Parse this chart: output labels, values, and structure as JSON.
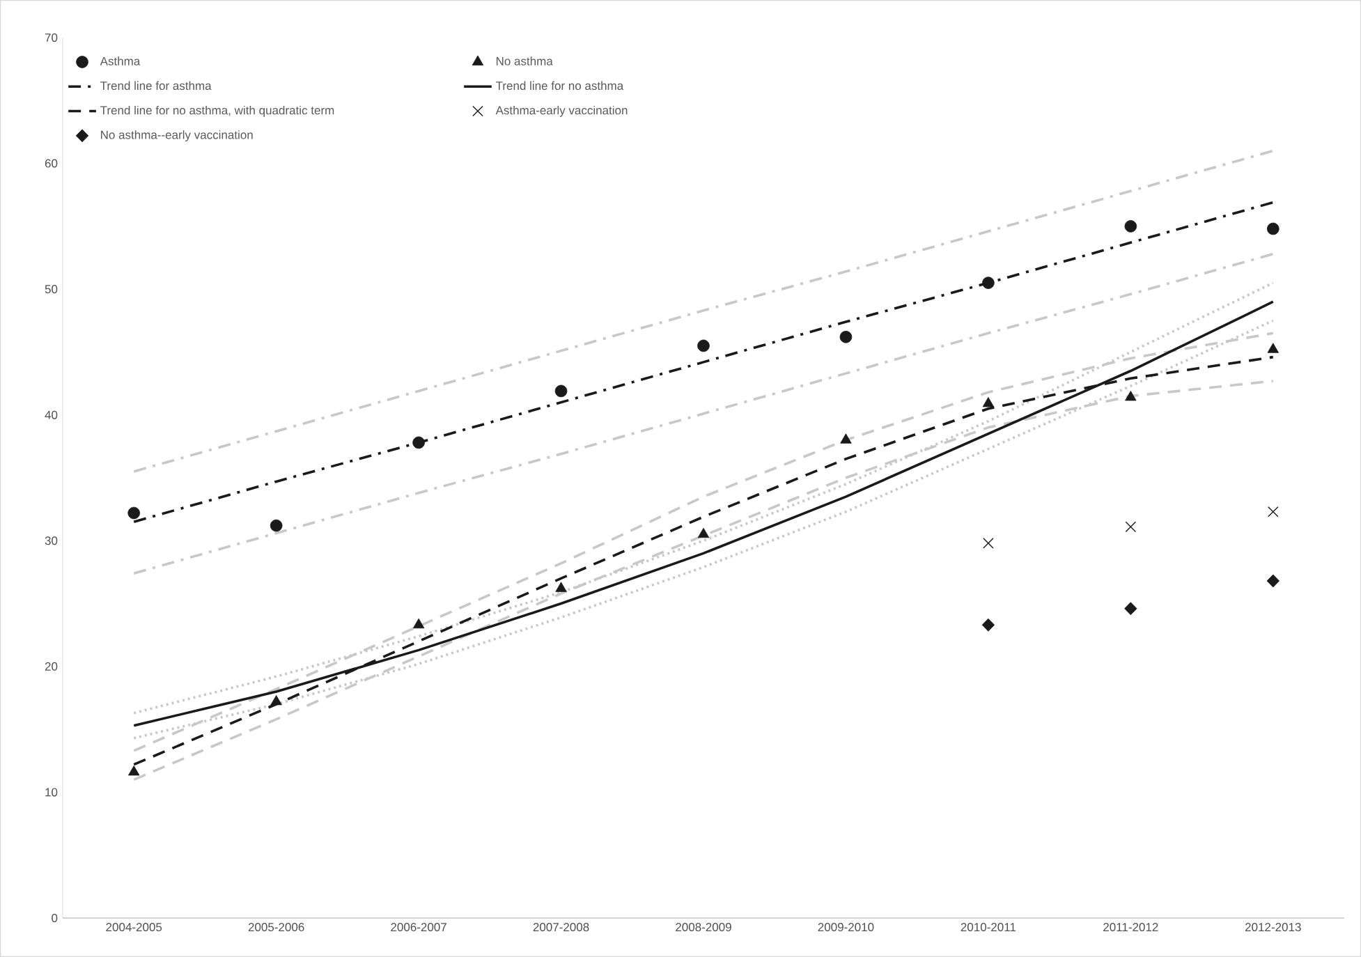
{
  "chart_data": {
    "type": "scatter",
    "categories": [
      "2004-2005",
      "2005-2006",
      "2006-2007",
      "2007-2008",
      "2008-2009",
      "2009-2010",
      "2010-2011",
      "2011-2012",
      "2012-2013"
    ],
    "ylim": [
      0,
      70
    ],
    "yticks": [
      0,
      10,
      20,
      30,
      40,
      50,
      60,
      70
    ],
    "grid": false,
    "legend": "top",
    "series": [
      {
        "name": "Asthma",
        "marker": "circle",
        "color": "#1a1a1a",
        "values": [
          32.2,
          31.2,
          37.8,
          41.9,
          45.5,
          46.2,
          50.5,
          55.0,
          54.8
        ]
      },
      {
        "name": "No asthma",
        "marker": "triangle",
        "color": "#1a1a1a",
        "values": [
          11.6,
          17.2,
          23.3,
          26.2,
          30.5,
          38.0,
          40.9,
          41.4,
          45.2
        ]
      },
      {
        "name": "Trend line for asthma",
        "type": "line",
        "line_style": "dashdot",
        "color": "#1a1a1a",
        "values": [
          31.5,
          34.7,
          37.8,
          41.0,
          44.2,
          47.4,
          50.5,
          53.7,
          56.9
        ]
      },
      {
        "name": "Trend line for no asthma",
        "type": "line",
        "line_style": "solid",
        "color": "#1a1a1a",
        "values": [
          15.3,
          18.0,
          21.3,
          25.0,
          29.0,
          33.5,
          38.5,
          43.5,
          49.0
        ]
      },
      {
        "name": "Trend line for no asthma, with quadratic term",
        "type": "line",
        "line_style": "dashed",
        "color": "#1a1a1a",
        "values": [
          12.2,
          17.0,
          22.0,
          27.0,
          31.9,
          36.5,
          40.5,
          42.9,
          44.6
        ]
      },
      {
        "name": "Asthma-early vaccination",
        "marker": "cross",
        "color": "#1a1a1a",
        "values": [
          null,
          null,
          null,
          null,
          null,
          null,
          29.8,
          31.1,
          32.3
        ]
      },
      {
        "name": "No asthma--early vaccination",
        "marker": "diamond",
        "color": "#1a1a1a",
        "values": [
          null,
          null,
          null,
          null,
          null,
          null,
          23.3,
          24.6,
          26.8
        ]
      },
      {
        "type": "line",
        "line_style": "dashdot",
        "color": "#c8c8c8",
        "values": [
          35.5,
          38.7,
          41.9,
          45.1,
          48.3,
          51.4,
          54.6,
          57.8,
          61.0
        ]
      },
      {
        "type": "line",
        "line_style": "dashdot",
        "color": "#c8c8c8",
        "values": [
          27.4,
          30.6,
          33.8,
          36.9,
          40.1,
          43.3,
          46.5,
          49.6,
          52.8
        ]
      },
      {
        "type": "line",
        "line_style": "dotted",
        "color": "#c8c8c8",
        "values": [
          16.3,
          19.2,
          22.4,
          25.9,
          30.0,
          34.5,
          39.5,
          45.0,
          50.5
        ]
      },
      {
        "type": "line",
        "line_style": "dotted",
        "color": "#c8c8c8",
        "values": [
          14.3,
          17.0,
          20.2,
          23.9,
          27.9,
          32.3,
          37.3,
          42.3,
          47.5
        ]
      },
      {
        "type": "line",
        "line_style": "dashed",
        "color": "#c8c8c8",
        "values": [
          13.3,
          18.2,
          23.2,
          28.2,
          33.5,
          38.0,
          41.8,
          44.5,
          46.5
        ]
      },
      {
        "type": "line",
        "line_style": "dashed",
        "color": "#c8c8c8",
        "values": [
          11.0,
          15.8,
          20.8,
          25.8,
          30.4,
          35.0,
          39.0,
          41.5,
          42.7
        ]
      }
    ]
  }
}
